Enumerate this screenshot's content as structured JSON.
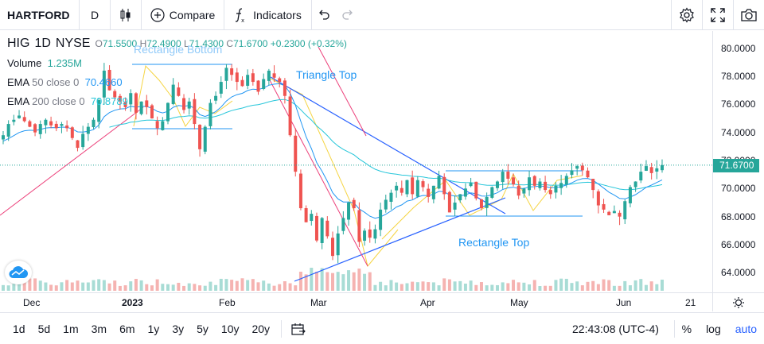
{
  "toolbar": {
    "symbol": "HARTFORD",
    "interval": "D",
    "compare_label": "Compare",
    "indicators_label": "Indicators"
  },
  "legend": {
    "symbol": "HIG",
    "interval": "1D",
    "exchange": "NYSE",
    "open_label": "O",
    "open": "71.5500",
    "high_label": "H",
    "high": "72.4900",
    "low_label": "L",
    "low": "71.4300",
    "close_label": "C",
    "close": "71.6700",
    "change": "+0.2300 (+0.32%)"
  },
  "indicators": [
    {
      "name": "Volume",
      "params": "",
      "value": "1.235M"
    },
    {
      "name": "EMA",
      "params": "50 close 0",
      "value": "70.4660"
    },
    {
      "name": "EMA",
      "params": "200 close 0",
      "value": "70.8789"
    }
  ],
  "drawings": {
    "rect_bottom": "Rectangle Bottom",
    "triangle_top": "Triangle Top",
    "rect_top": "Rectangle Top"
  },
  "price_axis": {
    "ticks": [
      "80.0000",
      "78.0000",
      "76.0000",
      "74.0000",
      "72.0000",
      "70.0000",
      "68.0000",
      "66.0000",
      "64.0000"
    ],
    "last_price": "71.6700"
  },
  "time_axis": {
    "ticks": [
      "Dec",
      "2023",
      "Feb",
      "Mar",
      "Apr",
      "May",
      "Jun",
      "21"
    ]
  },
  "bottom": {
    "ranges": [
      "1d",
      "5d",
      "1m",
      "3m",
      "6m",
      "1y",
      "3y",
      "5y",
      "10y",
      "20y"
    ],
    "clock": "22:43:08 (UTC-4)",
    "percent": "%",
    "log": "log",
    "auto": "auto"
  },
  "colors": {
    "up": "#26a69a",
    "down": "#ef5350",
    "accent": "#2962ff",
    "ema50": "#2196f3",
    "ema200": "#26c6da"
  },
  "chart_data": {
    "type": "candlestick",
    "symbol": "HIG",
    "ylim": [
      63.0,
      81.0
    ],
    "x": [
      "Dec",
      "2023",
      "Feb",
      "Mar",
      "Apr",
      "May",
      "Jun",
      "21"
    ],
    "close_series": [
      73.8,
      74.6,
      74.9,
      75.2,
      74.8,
      74.4,
      74.0,
      74.6,
      74.9,
      74.5,
      74.3,
      74.6,
      74.3,
      73.6,
      72.9,
      73.9,
      74.4,
      74.9,
      76.3,
      78.4,
      77.0,
      76.5,
      76.2,
      75.8,
      76.8,
      75.4,
      76.2,
      75.8,
      75.0,
      74.3,
      74.8,
      76.1,
      77.4,
      76.6,
      75.6,
      76.2,
      74.6,
      72.8,
      74.4,
      76.1,
      76.6,
      77.6,
      78.6,
      78.1,
      77.6,
      77.3,
      78.1,
      77.6,
      76.9,
      77.8,
      78.4,
      77.9,
      77.6,
      76.6,
      73.8,
      71.2,
      68.6,
      67.6,
      68.2,
      66.3,
      67.9,
      66.6,
      65.2,
      66.8,
      67.9,
      69.0,
      68.6,
      66.2,
      67.0,
      66.5,
      67.1,
      68.5,
      69.2,
      69.7,
      70.2,
      69.7,
      70.6,
      69.6,
      70.6,
      70.1,
      69.4,
      70.2,
      70.9,
      69.6,
      68.3,
      69.0,
      69.6,
      70.0,
      70.4,
      69.3,
      68.6,
      69.4,
      70.1,
      70.5,
      71.2,
      70.7,
      70.3,
      69.5,
      70.0,
      70.8,
      70.2,
      70.5,
      69.9,
      69.6,
      70.2,
      70.4,
      70.9,
      71.3,
      71.6,
      71.3,
      70.8,
      69.9,
      68.8,
      68.5,
      68.1,
      68.4,
      68.0,
      69.1,
      70.1,
      70.5,
      71.2,
      71.6,
      71.1,
      71.44,
      71.67
    ]
  }
}
